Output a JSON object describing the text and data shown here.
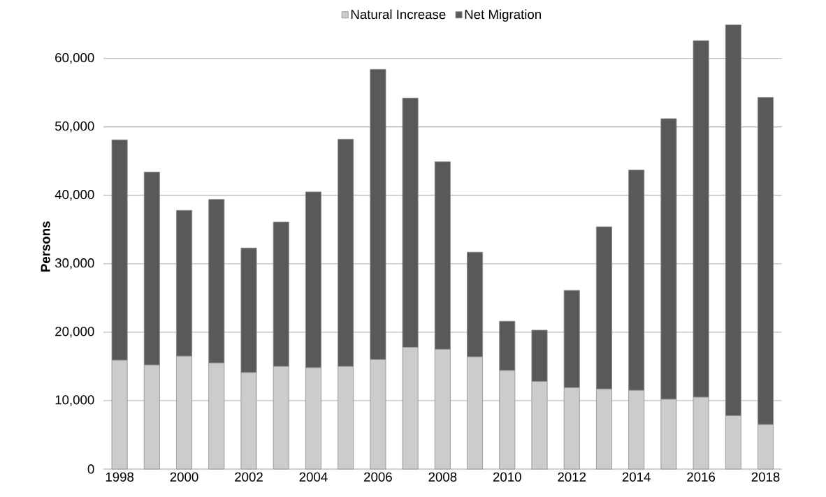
{
  "chart_data": {
    "type": "bar",
    "stacked": true,
    "ylabel": "Persons",
    "categories": [
      "1998",
      null,
      "2000",
      null,
      "2002",
      null,
      "2004",
      null,
      "2006",
      null,
      "2008",
      null,
      "2010",
      null,
      "2012",
      null,
      "2014",
      null,
      "2016",
      null,
      "2018"
    ],
    "series": [
      {
        "name": "Natural Increase",
        "color": "#cccccc",
        "values": [
          15900,
          15200,
          16500,
          15500,
          14100,
          15000,
          14800,
          15000,
          16000,
          17800,
          17500,
          16400,
          14400,
          12800,
          11900,
          11700,
          11500,
          10200,
          10500,
          7800,
          6500
        ]
      },
      {
        "name": "Net Migration",
        "color": "#595959",
        "values": [
          32200,
          28200,
          21300,
          23900,
          18200,
          21100,
          25700,
          33200,
          42400,
          36400,
          27400,
          15300,
          7200,
          7500,
          14200,
          23700,
          32200,
          41000,
          52100,
          57100,
          47800
        ]
      }
    ],
    "ylim": [
      0,
      65000
    ],
    "yticks": [
      0,
      {
        "value": 10000,
        "label": "10,000"
      },
      {
        "value": 20000,
        "label": "20,000"
      },
      {
        "value": 30000,
        "label": "30,000"
      },
      {
        "value": 40000,
        "label": "40,000"
      },
      {
        "value": 50000,
        "label": "50,000"
      },
      {
        "value": 60000,
        "label": "60,000"
      }
    ],
    "grid": "y",
    "legend": "top"
  }
}
